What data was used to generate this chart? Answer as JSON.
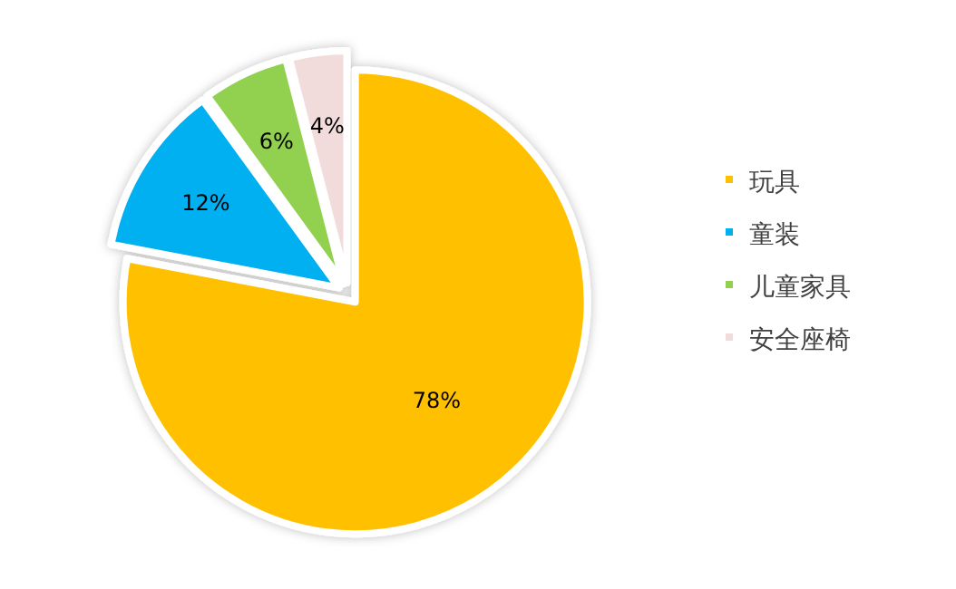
{
  "chart_data": {
    "type": "pie",
    "categories": [
      "玩具",
      "童装",
      "儿童家具",
      "安全座椅"
    ],
    "values": [
      78,
      12,
      6,
      4
    ],
    "colors": [
      "#ffc000",
      "#00b0f0",
      "#92d050",
      "#f2dcdb"
    ],
    "value_labels": [
      "78%",
      "12%",
      "6%",
      "4%"
    ],
    "legend": "right"
  }
}
